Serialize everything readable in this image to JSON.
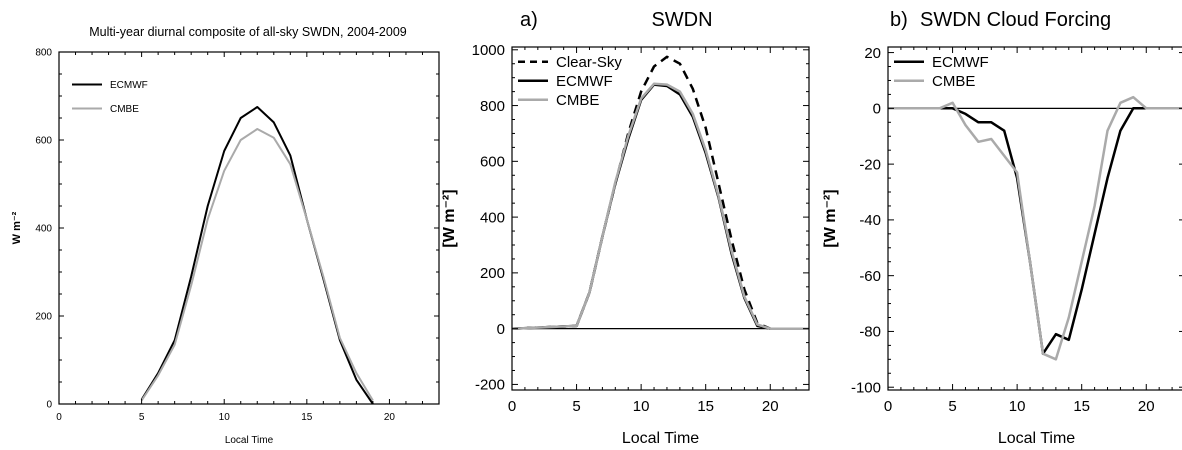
{
  "chart_data": [
    {
      "type": "line",
      "title": "Multi-year diurnal composite of all-sky SWDN, 2004-2009",
      "xlabel": "Local Time",
      "ylabel": "W m⁻²",
      "xlim": [
        0,
        23
      ],
      "ylim": [
        0,
        800
      ],
      "xticks": [
        0,
        5,
        10,
        15,
        20
      ],
      "yticks": [
        0,
        200,
        400,
        600,
        800
      ],
      "legend_position": "top-left",
      "series": [
        {
          "name": "ECMWF",
          "color": "#000000",
          "dash": "solid",
          "x": [
            5,
            6,
            7,
            8,
            9,
            10,
            11,
            12,
            13,
            14,
            15,
            16,
            17,
            18,
            19
          ],
          "y": [
            10,
            70,
            145,
            290,
            450,
            575,
            650,
            675,
            640,
            565,
            420,
            285,
            145,
            55,
            0
          ]
        },
        {
          "name": "CMBE",
          "color": "#aaaaaa",
          "dash": "solid",
          "x": [
            5,
            6,
            7,
            8,
            9,
            10,
            11,
            12,
            13,
            14,
            15,
            16,
            17,
            18,
            19
          ],
          "y": [
            8,
            65,
            135,
            270,
            420,
            530,
            600,
            625,
            605,
            545,
            420,
            290,
            150,
            70,
            8
          ]
        }
      ]
    },
    {
      "type": "line",
      "panel_label": "a)",
      "title": "SWDN",
      "xlabel": "Local Time",
      "ylabel": "[W m⁻²]",
      "xlim": [
        0,
        23
      ],
      "ylim": [
        -220,
        1010
      ],
      "xticks": [
        0,
        5,
        10,
        15,
        20
      ],
      "yticks": [
        -200,
        0,
        200,
        400,
        600,
        800,
        1000
      ],
      "zero_line": true,
      "legend_position": "top-left",
      "series": [
        {
          "name": "Clear-Sky",
          "color": "#000000",
          "dash": "dashed",
          "x": [
            0,
            5,
            6,
            7,
            8,
            9,
            10,
            11,
            12,
            13,
            14,
            15,
            16,
            17,
            18,
            19,
            20,
            23
          ],
          "y": [
            0,
            10,
            130,
            330,
            520,
            700,
            850,
            940,
            975,
            950,
            860,
            720,
            520,
            320,
            140,
            20,
            0,
            0
          ]
        },
        {
          "name": "ECMWF",
          "color": "#000000",
          "dash": "solid",
          "x": [
            0,
            5,
            6,
            7,
            8,
            9,
            10,
            11,
            12,
            13,
            14,
            15,
            16,
            17,
            18,
            19,
            20,
            23
          ],
          "y": [
            0,
            10,
            130,
            330,
            520,
            680,
            820,
            875,
            870,
            840,
            760,
            630,
            470,
            270,
            110,
            10,
            0,
            0
          ]
        },
        {
          "name": "CMBE",
          "color": "#aaaaaa",
          "dash": "solid",
          "x": [
            0,
            5,
            6,
            7,
            8,
            9,
            10,
            11,
            12,
            13,
            14,
            15,
            16,
            17,
            18,
            19,
            20,
            23
          ],
          "y": [
            0,
            10,
            130,
            330,
            525,
            690,
            825,
            878,
            875,
            850,
            770,
            640,
            475,
            280,
            115,
            15,
            0,
            0
          ]
        }
      ]
    },
    {
      "type": "line",
      "panel_label": "b)",
      "title": "SWDN Cloud Forcing",
      "xlabel": "Local Time",
      "ylabel": "[W m⁻²]",
      "xlim": [
        0,
        23
      ],
      "ylim": [
        -101,
        22
      ],
      "xticks": [
        0,
        5,
        10,
        15,
        20
      ],
      "yticks": [
        -100,
        -80,
        -60,
        -40,
        -20,
        0,
        20
      ],
      "zero_line": true,
      "legend_position": "top-left",
      "series": [
        {
          "name": "ECMWF",
          "color": "#000000",
          "dash": "solid",
          "x": [
            0,
            5,
            6,
            7,
            8,
            9,
            10,
            11,
            12,
            13,
            14,
            15,
            16,
            17,
            18,
            19,
            20,
            23
          ],
          "y": [
            0,
            0,
            -2,
            -5,
            -5,
            -8,
            -25,
            -55,
            -88,
            -81,
            -83,
            -65,
            -45,
            -25,
            -8,
            0,
            0,
            0
          ]
        },
        {
          "name": "CMBE",
          "color": "#aaaaaa",
          "dash": "solid",
          "x": [
            0,
            4,
            5,
            6,
            7,
            8,
            9,
            10,
            11,
            12,
            13,
            14,
            15,
            16,
            17,
            18,
            19,
            20,
            23
          ],
          "y": [
            0,
            0,
            2,
            -6,
            -12,
            -11,
            -17,
            -23,
            -55,
            -88,
            -90,
            -75,
            -55,
            -35,
            -8,
            2,
            4,
            0,
            0
          ]
        }
      ]
    }
  ]
}
